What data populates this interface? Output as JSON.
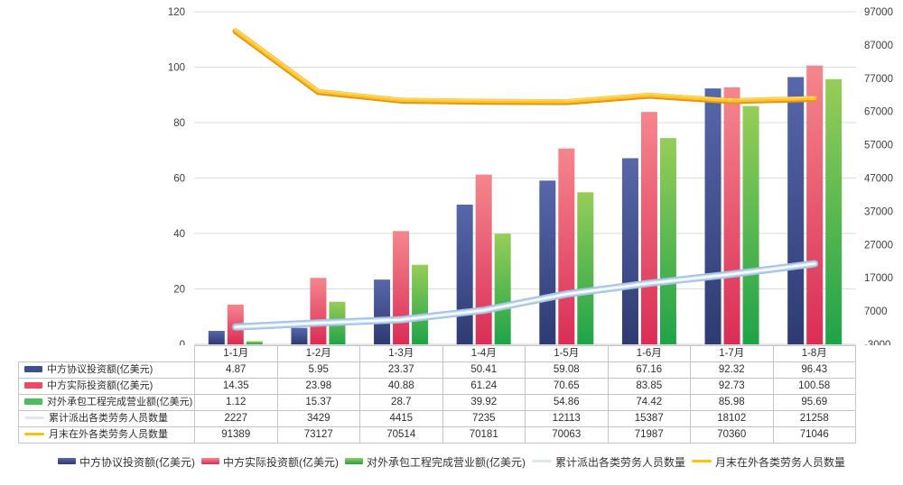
{
  "chart_data": {
    "type": "combo-bar-line",
    "categories": [
      "1-1月",
      "1-2月",
      "1-3月",
      "1-4月",
      "1-5月",
      "1-6月",
      "1-7月",
      "1-8月"
    ],
    "bar_series": [
      {
        "name": "中方协议投资额(亿美元)",
        "values": [
          4.87,
          5.95,
          23.37,
          50.41,
          59.08,
          67.16,
          92.32,
          96.43
        ],
        "color_top": "#5767aa",
        "color_bottom": "#2e3a72",
        "legend_color": "#3d4d8f"
      },
      {
        "name": "中方实际投资额(亿美元)",
        "values": [
          14.35,
          23.98,
          40.88,
          61.24,
          70.65,
          83.85,
          92.73,
          100.58
        ],
        "color_top": "#f5868d",
        "color_bottom": "#da2d55",
        "legend_color": "#ed4a63"
      },
      {
        "name": "对外承包工程完成营业额(亿美元)",
        "values": [
          1.12,
          15.37,
          28.7,
          39.92,
          54.86,
          74.42,
          85.98,
          95.69
        ],
        "color_top": "#97cd58",
        "color_bottom": "#1fa349",
        "legend_color": "#4cbd5b"
      }
    ],
    "line_series": [
      {
        "name": "累计派出各类劳务人员数量",
        "values": [
          2227,
          3429,
          4415,
          7235,
          12113,
          15387,
          18102,
          21258
        ],
        "outer_color": "#a3c3e5",
        "inner_color": "#ffffff",
        "legend_color": "#dfe8f2"
      },
      {
        "name": "月末在外各类劳务人员数量",
        "values": [
          91389,
          73127,
          70514,
          70181,
          70063,
          71987,
          70360,
          71046
        ],
        "outer_color": "#e6950f",
        "inner_color": "#ffc42b",
        "legend_color": "#ffc008"
      }
    ],
    "left_axis": {
      "min": 0,
      "max": 120,
      "ticks": [
        0,
        20,
        40,
        60,
        80,
        100,
        120
      ]
    },
    "right_axis": {
      "min": -3000,
      "max": 97000,
      "ticks": [
        -3000,
        7000,
        17000,
        27000,
        37000,
        47000,
        57000,
        67000,
        77000,
        87000,
        97000
      ]
    },
    "grid": true,
    "legend_position": "bottom",
    "title": "",
    "xlabel": "",
    "ylabel": ""
  },
  "colors": {
    "gridline": "#dbdbdb",
    "axis_line": "#c8c8c8",
    "axis_text": "#3d3d3d"
  }
}
